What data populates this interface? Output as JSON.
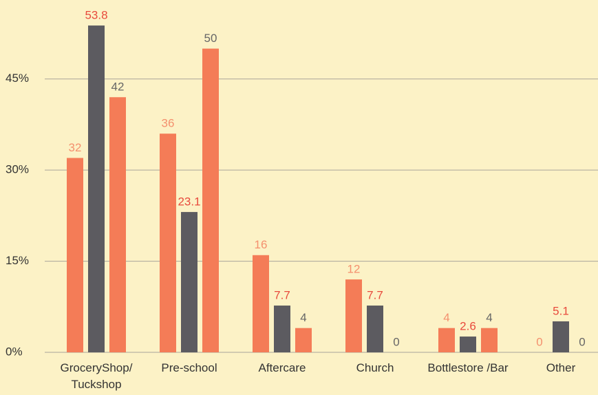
{
  "chart_data": {
    "type": "bar",
    "categories": [
      "GroceryShop/\nTuckshop",
      "Pre-school",
      "Aftercare",
      "Church",
      "Bottlestore /Bar",
      "Other"
    ],
    "series": [
      {
        "color": "#f47c57",
        "label_color": "#f4906e",
        "values": [
          32,
          36,
          16,
          12,
          4,
          0
        ]
      },
      {
        "color": "#5c5b60",
        "label_color": "#e84a3c",
        "values": [
          53.8,
          23.1,
          7.7,
          7.7,
          2.6,
          5.1
        ]
      },
      {
        "color": "#f47c57",
        "label_color": "#666666",
        "values": [
          42,
          50,
          4,
          0,
          4,
          0
        ]
      }
    ],
    "ylim": [
      0,
      58
    ],
    "yticks": [
      {
        "value": 0,
        "label": "0%"
      },
      {
        "value": 15,
        "label": "15%"
      },
      {
        "value": 30,
        "label": "30%"
      },
      {
        "value": 45,
        "label": "45%"
      }
    ],
    "grid": true
  }
}
